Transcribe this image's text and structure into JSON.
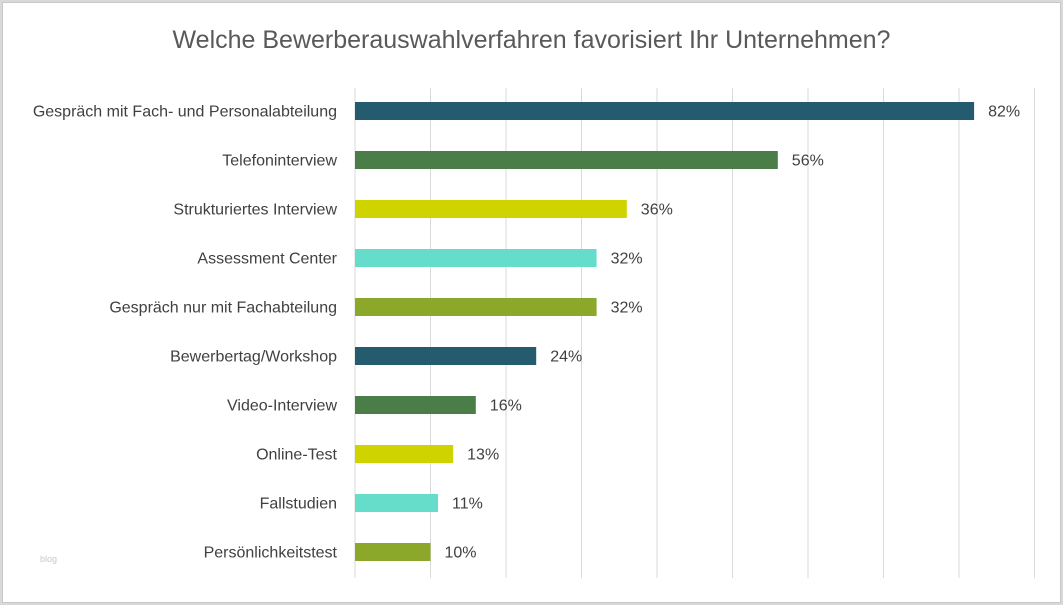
{
  "chart_data": {
    "type": "bar",
    "orientation": "horizontal",
    "title": "Welche Bewerberauswahlverfahren favorisiert Ihr Unternehmen?",
    "categories": [
      "Gespräch mit Fach- und Personalabteilung",
      "Telefoninterview",
      "Strukturiertes Interview",
      "Assessment Center",
      "Gespräch nur mit Fachabteilung",
      "Bewerbertag/Workshop",
      "Video-Interview",
      "Online-Test",
      "Fallstudien",
      "Persönlichkeitstest"
    ],
    "values": [
      82,
      56,
      36,
      32,
      32,
      24,
      16,
      13,
      11,
      10
    ],
    "value_labels": [
      "82%",
      "56%",
      "36%",
      "32%",
      "32%",
      "24%",
      "16%",
      "13%",
      "11%",
      "10%"
    ],
    "unit": "%",
    "colors": [
      "#255b6e",
      "#4a7d48",
      "#cfd400",
      "#66dccb",
      "#8ca82a",
      "#255b6e",
      "#4a7d48",
      "#cfd400",
      "#66dccb",
      "#8ca82a"
    ],
    "xlim": [
      0,
      90
    ],
    "grid": true,
    "gridline_step": 10,
    "legend": "none",
    "data_labels": "outside-end"
  },
  "watermark": "blog"
}
